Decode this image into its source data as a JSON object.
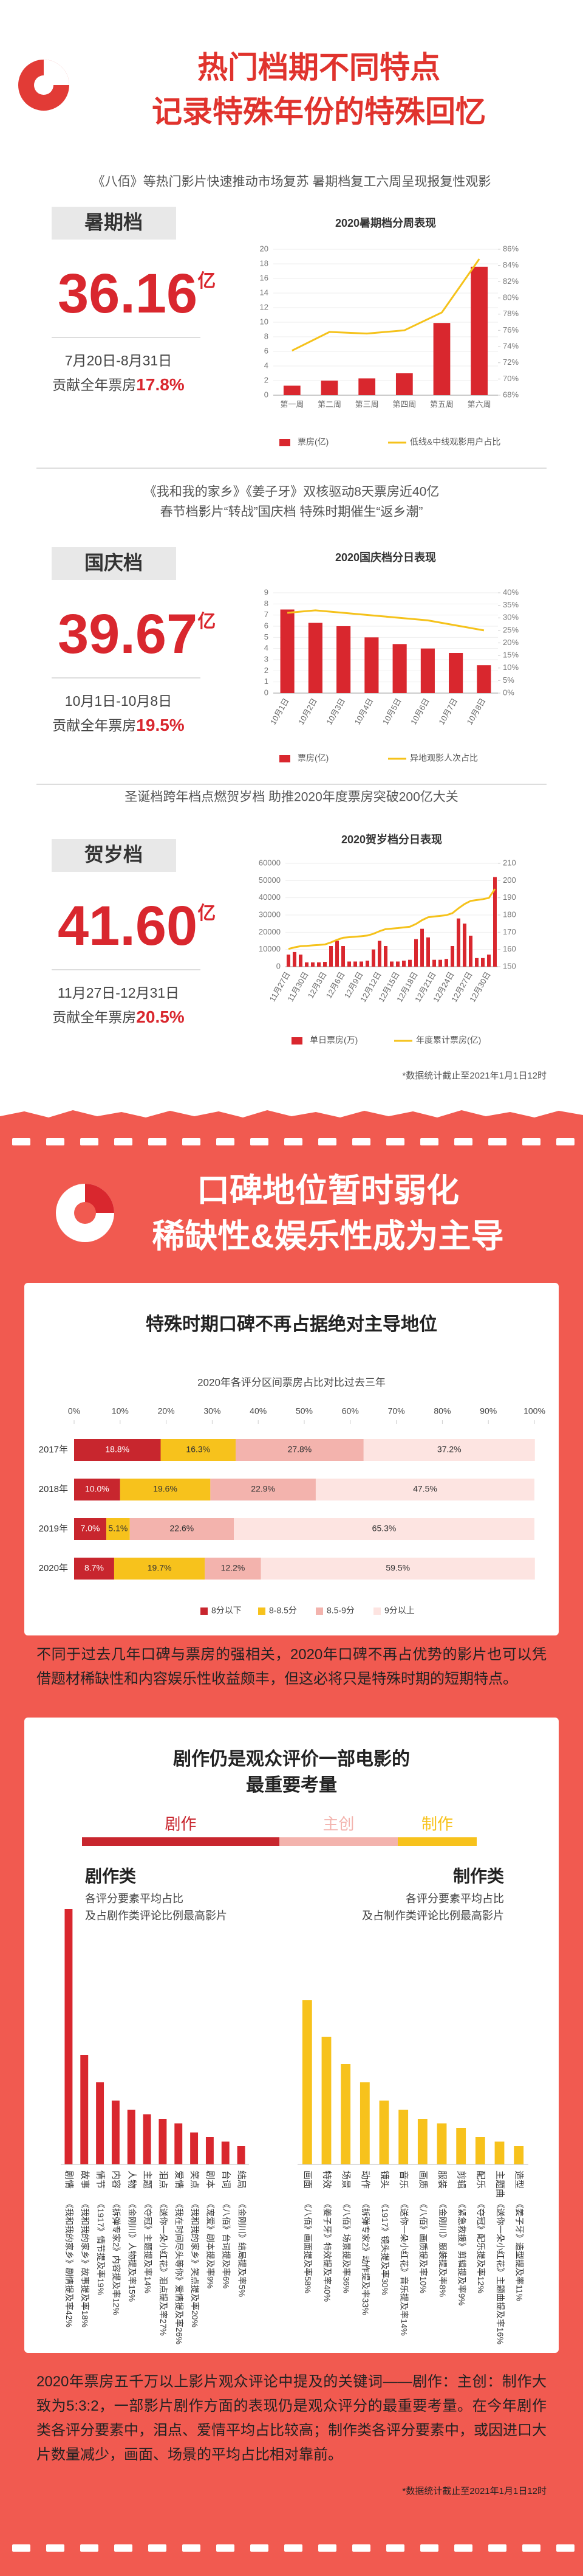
{
  "header": {
    "title": [
      "热门档期不同特点",
      "记录特殊年份的特殊回忆"
    ]
  },
  "seasons": [
    {
      "headline": [
        "《八佰》等热门影片快速推动市场复苏 暑期档复工六周呈现报复性观影"
      ],
      "name": "暑期档",
      "box_office": "36.16",
      "unit": "亿",
      "dates": "7月20日-8月31日",
      "share_label": "贡献全年票房",
      "share": "17.8%"
    },
    {
      "headline": [
        "《我和我的家乡》《姜子牙》双核驱动8天票房近40亿",
        "春节档影片“转战”国庆档 特殊时期催生“返乡潮”"
      ],
      "name": "国庆档",
      "box_office": "39.67",
      "unit": "亿",
      "dates": "10月1日-10月8日",
      "share_label": "贡献全年票房",
      "share": "19.5%"
    },
    {
      "headline": [
        "圣诞档跨年档点燃贺岁档 助推2020年度票房突破200亿大关"
      ],
      "name": "贺岁档",
      "box_office": "41.60",
      "unit": "亿",
      "dates": "11月27日-12月31日",
      "share_label": "贡献全年票房",
      "share": "20.5%"
    }
  ],
  "note1": "*数据统计截止至2021年1月1日12时",
  "section2": {
    "title": [
      "口碑地位暂时弱化",
      "稀缺性&娱乐性成为主导"
    ],
    "card1_title": "特殊时期口碑不再占据绝对主导地位",
    "paragraph1": "不同于过去几年口碑与票房的强相关，2020年口碑不再占优势的影片也可以凭借题材稀缺性和内容娱乐性收益颇丰，但这必将只是特殊时期的短期特点。",
    "card2_title": [
      "剧作仍是观众评价一部电影的",
      "最重要考量"
    ],
    "paragraph2": "2020年票房五千万以上影片观众评论中提及的关键词——剧作：主创：制作大致为5:3:2，一部影片剧作方面的表现仍是观众评分的最重要考量。在今年剧作类各评分要素中，泪点、爱情平均占比较高；制作类各评分要素中，或因进口大片数量减少，画面、场景的平均占比相对靠前。",
    "note": "*数据统计截止至2021年1月1日12时"
  },
  "chart_data": [
    {
      "type": "combo",
      "title": "2020暑期档分周表现",
      "categories": [
        "第一周",
        "第二周",
        "第三周",
        "第四周",
        "第五周",
        "第六周"
      ],
      "series": [
        {
          "name": "票房(亿)",
          "type": "bar",
          "color": "#d9272e",
          "values": [
            1.3,
            2,
            2.3,
            3,
            9.9,
            17.6
          ]
        },
        {
          "name": "低线&中线观影用户占比",
          "type": "line",
          "axis": "y2",
          "color": "#f5c21b",
          "values": [
            73.5,
            75.8,
            75.6,
            76,
            78.2,
            84.8
          ]
        }
      ],
      "ylim": [
        0,
        20
      ],
      "yticks": [
        0,
        2,
        4,
        6,
        8,
        10,
        12,
        14,
        16,
        18,
        20
      ],
      "y2lim": [
        68,
        86
      ],
      "y2ticks": [
        {
          "value": 68,
          "label": "68%"
        },
        {
          "value": 70,
          "label": "70%"
        },
        {
          "value": 72,
          "label": "72%"
        },
        {
          "value": 74,
          "label": "74%"
        },
        {
          "value": 76,
          "label": "76%"
        },
        {
          "value": 78,
          "label": "78%"
        },
        {
          "value": 80,
          "label": "80%"
        },
        {
          "value": 82,
          "label": "82%"
        },
        {
          "value": 84,
          "label": "84%"
        },
        {
          "value": 86,
          "label": "86%"
        }
      ],
      "grid": true
    },
    {
      "type": "combo",
      "title": "2020国庆档分日表现",
      "categories": [
        "10月1日",
        "10月2日",
        "10月3日",
        "10月4日",
        "10月5日",
        "10月6日",
        "10月7日",
        "10月8日"
      ],
      "series": [
        {
          "name": "票房(亿)",
          "type": "bar",
          "color": "#d9272e",
          "values": [
            7.5,
            6.3,
            6,
            5,
            4.4,
            4,
            3.6,
            2.5
          ]
        },
        {
          "name": "异地观影人次占比",
          "type": "line",
          "axis": "y2",
          "color": "#f5c21b",
          "values": [
            32,
            33,
            32,
            31,
            30,
            29,
            27,
            25
          ]
        }
      ],
      "ylim": [
        0,
        9
      ],
      "yticks": [
        0,
        1,
        2,
        3,
        4,
        5,
        6,
        7,
        8,
        9
      ],
      "y2lim": [
        0,
        40
      ],
      "y2ticks": [
        {
          "value": 0,
          "label": "0%"
        },
        {
          "value": 5,
          "label": "5%"
        },
        {
          "value": 10,
          "label": "10%"
        },
        {
          "value": 15,
          "label": "15%"
        },
        {
          "value": 20,
          "label": "20%"
        },
        {
          "value": 25,
          "label": "25%"
        },
        {
          "value": 30,
          "label": "30%"
        },
        {
          "value": 35,
          "label": "35%"
        },
        {
          "value": 40,
          "label": "40%"
        }
      ],
      "grid": true
    },
    {
      "type": "combo",
      "title": "2020贺岁档分日表现",
      "categories": [
        "11月27日",
        null,
        null,
        "11月30日",
        null,
        null,
        "12月3日",
        null,
        null,
        "12月6日",
        null,
        null,
        "12月9日",
        null,
        null,
        "12月12日",
        null,
        null,
        "12月15日",
        null,
        null,
        "12月18日",
        null,
        null,
        "12月21日",
        null,
        null,
        "12月24日",
        null,
        null,
        "12月27日",
        null,
        null,
        "12月30日",
        null
      ],
      "series": [
        {
          "name": "单日票房(万)",
          "type": "bar",
          "color": "#d9272e",
          "values": [
            7000,
            8500,
            7000,
            2500,
            2500,
            2500,
            2800,
            12000,
            15000,
            12000,
            3000,
            3000,
            3000,
            3500,
            10000,
            15000,
            12000,
            3000,
            3000,
            3500,
            4000,
            16000,
            22000,
            17000,
            4000,
            4000,
            4500,
            12000,
            28000,
            25000,
            18000,
            5000,
            5000,
            7000,
            52000
          ]
        },
        {
          "name": "年度累计票房(亿)",
          "type": "line",
          "axis": "y2",
          "color": "#f5c21b",
          "values": [
            160.3,
            161.2,
            161.9,
            162.1,
            162.4,
            162.6,
            162.9,
            164.1,
            165.6,
            166.8,
            167.1,
            167.4,
            167.7,
            168.1,
            169.1,
            170.6,
            171.8,
            172.1,
            172.4,
            172.8,
            173.2,
            174.8,
            177,
            178.7,
            179.1,
            179.5,
            179.9,
            181.1,
            183.9,
            186.4,
            188.2,
            188.7,
            189.2,
            189.9,
            195.1
          ]
        }
      ],
      "ylim": [
        0,
        60000
      ],
      "yticks": [
        0,
        10000,
        20000,
        30000,
        40000,
        50000,
        60000
      ],
      "y2lim": [
        150,
        210
      ],
      "y2ticks": [
        150,
        160,
        170,
        180,
        190,
        200,
        210
      ],
      "grid": true
    },
    {
      "type": "stacked_bar_h",
      "title": "2020年各评分区间票房占比对比过去三年",
      "categories": [
        "2017年",
        "2018年",
        "2019年",
        "2020年"
      ],
      "series": [
        {
          "name": "8分以下",
          "color": "#c8262e",
          "values": [
            18.8,
            10,
            7,
            8.7
          ],
          "value_labels": [
            "18.8%",
            "10.0%",
            "7.0%",
            "8.7%"
          ]
        },
        {
          "name": "8-8.5分",
          "color": "#f7c21c",
          "values": [
            16.3,
            19.6,
            5.1,
            19.7
          ],
          "value_labels": [
            "16.3%",
            "19.6%",
            "5.1%",
            "19.7%"
          ]
        },
        {
          "name": "8.5-9分",
          "color": "#f3b3ad",
          "values": [
            27.8,
            22.9,
            22.6,
            12.2
          ],
          "value_labels": [
            "27.8%",
            "22.9%",
            "22.6%",
            "12.2%"
          ]
        },
        {
          "name": "9分以上",
          "color": "#fde4e1",
          "values": [
            37.2,
            47.5,
            65.3,
            59.5
          ],
          "value_labels": [
            "37.2%",
            "47.5%",
            "65.3%",
            "59.5%"
          ]
        }
      ],
      "xlim": [
        0,
        100
      ],
      "xticks": [
        {
          "value": 0,
          "label": "0%"
        },
        {
          "value": 10,
          "label": "10%"
        },
        {
          "value": 20,
          "label": "20%"
        },
        {
          "value": 30,
          "label": "30%"
        },
        {
          "value": 40,
          "label": "40%"
        },
        {
          "value": 50,
          "label": "50%"
        },
        {
          "value": 60,
          "label": "60%"
        },
        {
          "value": 70,
          "label": "70%"
        },
        {
          "value": 80,
          "label": "80%"
        },
        {
          "value": 90,
          "label": "90%"
        },
        {
          "value": 100,
          "label": "100%"
        }
      ]
    },
    {
      "type": "ratio_bar",
      "categories": [
        "剧作",
        "主创",
        "制作"
      ],
      "values": [
        5,
        3,
        2
      ],
      "colors": [
        "#c8262e",
        "#f3b3ad",
        "#f7c21c"
      ]
    },
    {
      "type": "keyword_bar",
      "title": "剧作类",
      "subtitle": [
        "各评分要素平均占比",
        "及占剧作类评论比例最高影片"
      ],
      "color": "#d9272e",
      "ylim": [
        0,
        30
      ],
      "categories": [
        "剧情",
        "故事",
        "情节",
        "内容",
        "人物",
        "主题",
        "泪点",
        "爱情",
        "笑点",
        "剧本",
        "台词",
        "结局"
      ],
      "values": [
        28,
        12,
        9,
        7,
        6,
        5.5,
        5,
        4.5,
        3.5,
        3,
        2.5,
        2
      ],
      "annotations": [
        "《我和我的家乡》剧情提及率42%",
        "《我和我的家乡》故事提及率18%",
        "《1917》情节提及率19%",
        "《拆弹专家2》内容提及率12%",
        "《金刚川》人物提及率15%",
        "《夺冠》主题提及率14%",
        "《送你一朵小红花》泪点提及率27%",
        "《我在时间尽头等你》爱情提及率26%",
        "《我和我的家乡》笑点提及率20%",
        "《宠爱》剧本提及率9%",
        "《八佰》台词提及率6%",
        "《金刚川》结局提及率5%"
      ]
    },
    {
      "type": "keyword_bar",
      "title": "制作类",
      "subtitle": [
        "各评分要素平均占比",
        "及占制作类评论比例最高影片"
      ],
      "color": "#f7c21c",
      "ylim": [
        0,
        30
      ],
      "categories": [
        "画面",
        "特效",
        "场景",
        "动作",
        "镜头",
        "音乐",
        "画质",
        "服装",
        "剪辑",
        "配乐",
        "主题曲",
        "造型"
      ],
      "values": [
        18,
        14,
        11,
        9,
        7,
        6,
        5,
        4.5,
        4,
        3,
        2.5,
        2
      ],
      "annotations": [
        "《八佰》画面提及率58%",
        "《姜子牙》特效提及率40%",
        "《八佰》场景提及率36%",
        "《拆弹专家2》动作提及率33%",
        "《1917》镜头提及率30%",
        "《送你一朵小红花》音乐提及率14%",
        "《八佰》画质提及率10%",
        "《金刚川》服装提及率8%",
        "《紧急救援》剪辑提及率9%",
        "《夺冠》配乐提及率12%",
        "《送你一朵小红花》主题曲提及率16%",
        "《姜子牙》造型提及率11%"
      ]
    }
  ]
}
